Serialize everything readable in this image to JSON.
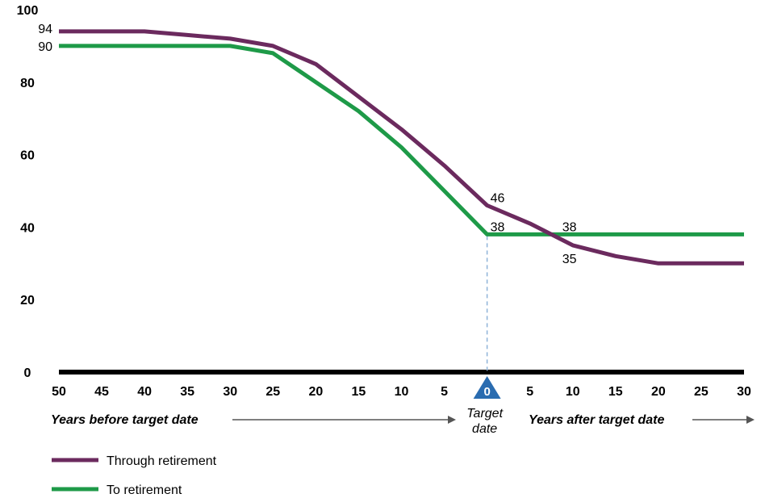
{
  "chart_data": {
    "type": "line",
    "x": [
      -50,
      -45,
      -40,
      -35,
      -30,
      -25,
      -20,
      -15,
      -10,
      -5,
      0,
      5,
      10,
      15,
      20,
      25,
      30
    ],
    "x_tick_labels": [
      "50",
      "45",
      "40",
      "35",
      "30",
      "25",
      "20",
      "15",
      "10",
      "5",
      "0",
      "5",
      "10",
      "15",
      "20",
      "25",
      "30"
    ],
    "y_ticks": [
      "0",
      "20",
      "40",
      "60",
      "80",
      "100"
    ],
    "ylim": [
      0,
      100
    ],
    "xlim": [
      -50,
      30
    ],
    "series": [
      {
        "name": "Through retirement",
        "color": "#6b2a5e",
        "values": [
          94,
          94,
          94,
          93,
          92,
          90,
          85,
          76,
          67,
          57,
          46,
          41,
          35,
          32,
          30,
          30,
          30
        ]
      },
      {
        "name": "To retirement",
        "color": "#1e9a48",
        "values": [
          90,
          90,
          90,
          90,
          90,
          88,
          80,
          72,
          62,
          50,
          38,
          38,
          38,
          38,
          38,
          38,
          38
        ]
      }
    ],
    "data_labels": [
      {
        "text": "94",
        "x": -50,
        "y": 94
      },
      {
        "text": "90",
        "x": -50,
        "y": 90
      },
      {
        "text": "46",
        "x": 0,
        "y": 46
      },
      {
        "text": "38",
        "x": 0,
        "y": 38
      },
      {
        "text": "38",
        "x": 10,
        "y": 38
      },
      {
        "text": "35",
        "x": 10,
        "y": 35
      }
    ],
    "target_marker": {
      "x": 0,
      "label": "0",
      "color": "#2a6cb0",
      "caption_line1": "Target",
      "caption_line2": "date"
    },
    "axis_captions": {
      "before": "Years before target date",
      "after": "Years after target date"
    },
    "legend_placement": "bottom-left",
    "grid": false
  }
}
